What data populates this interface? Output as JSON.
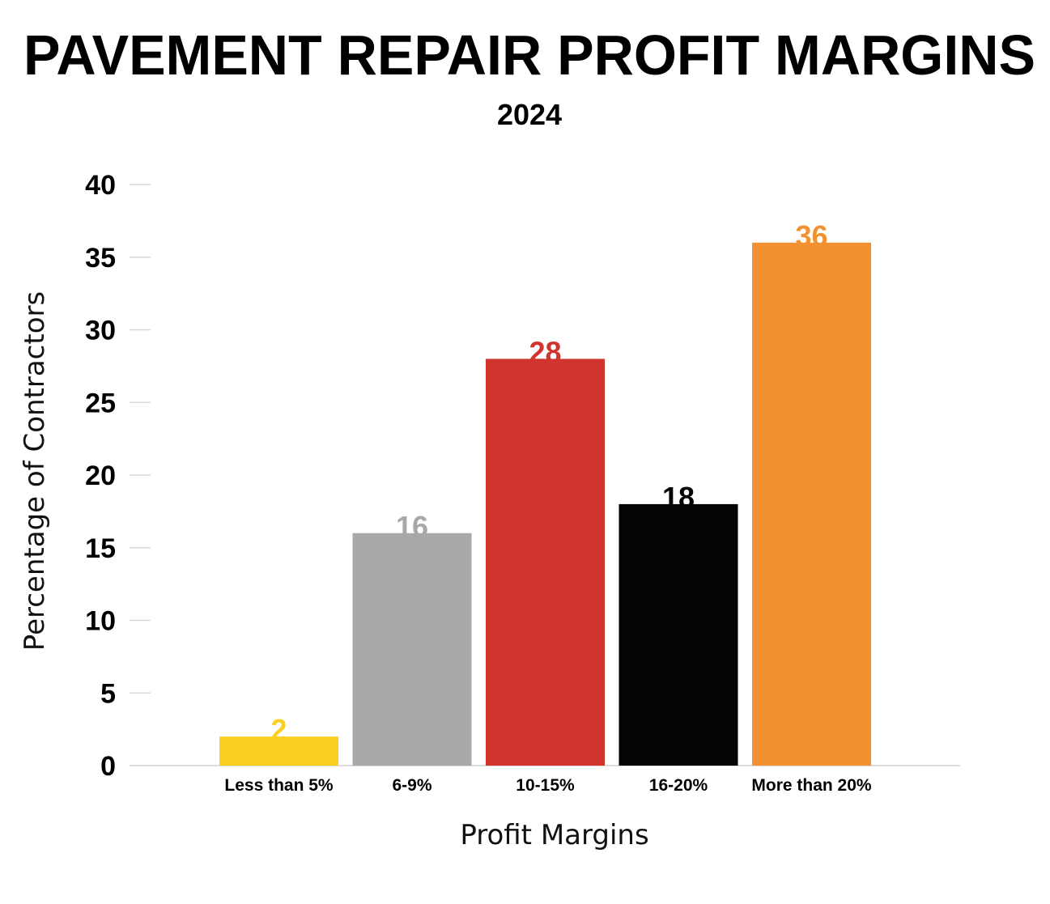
{
  "chart_data": {
    "type": "bar",
    "title": "PAVEMENT REPAIR PROFIT MARGINS",
    "subtitle": "2024",
    "xlabel": "Profit Margins",
    "ylabel": "Percentage of Contractors",
    "categories": [
      "Less than 5%",
      "6-9%",
      "10-15%",
      "16-20%",
      "More than 20%"
    ],
    "values": [
      2,
      16,
      28,
      18,
      36
    ],
    "data_labels": [
      "2",
      "16",
      "28",
      "18",
      "36"
    ],
    "colors": [
      "#fcd020",
      "#a7a8aa",
      "#d0342c",
      "#050505",
      "#f39130"
    ],
    "ylim": [
      0,
      40
    ],
    "yticks": [
      "0",
      "5",
      "10",
      "15",
      "20",
      "25",
      "30",
      "35",
      "40"
    ],
    "ytick_values": [
      0,
      5,
      10,
      15,
      20,
      25,
      30,
      35,
      40
    ],
    "grid": false,
    "legend": "none"
  }
}
